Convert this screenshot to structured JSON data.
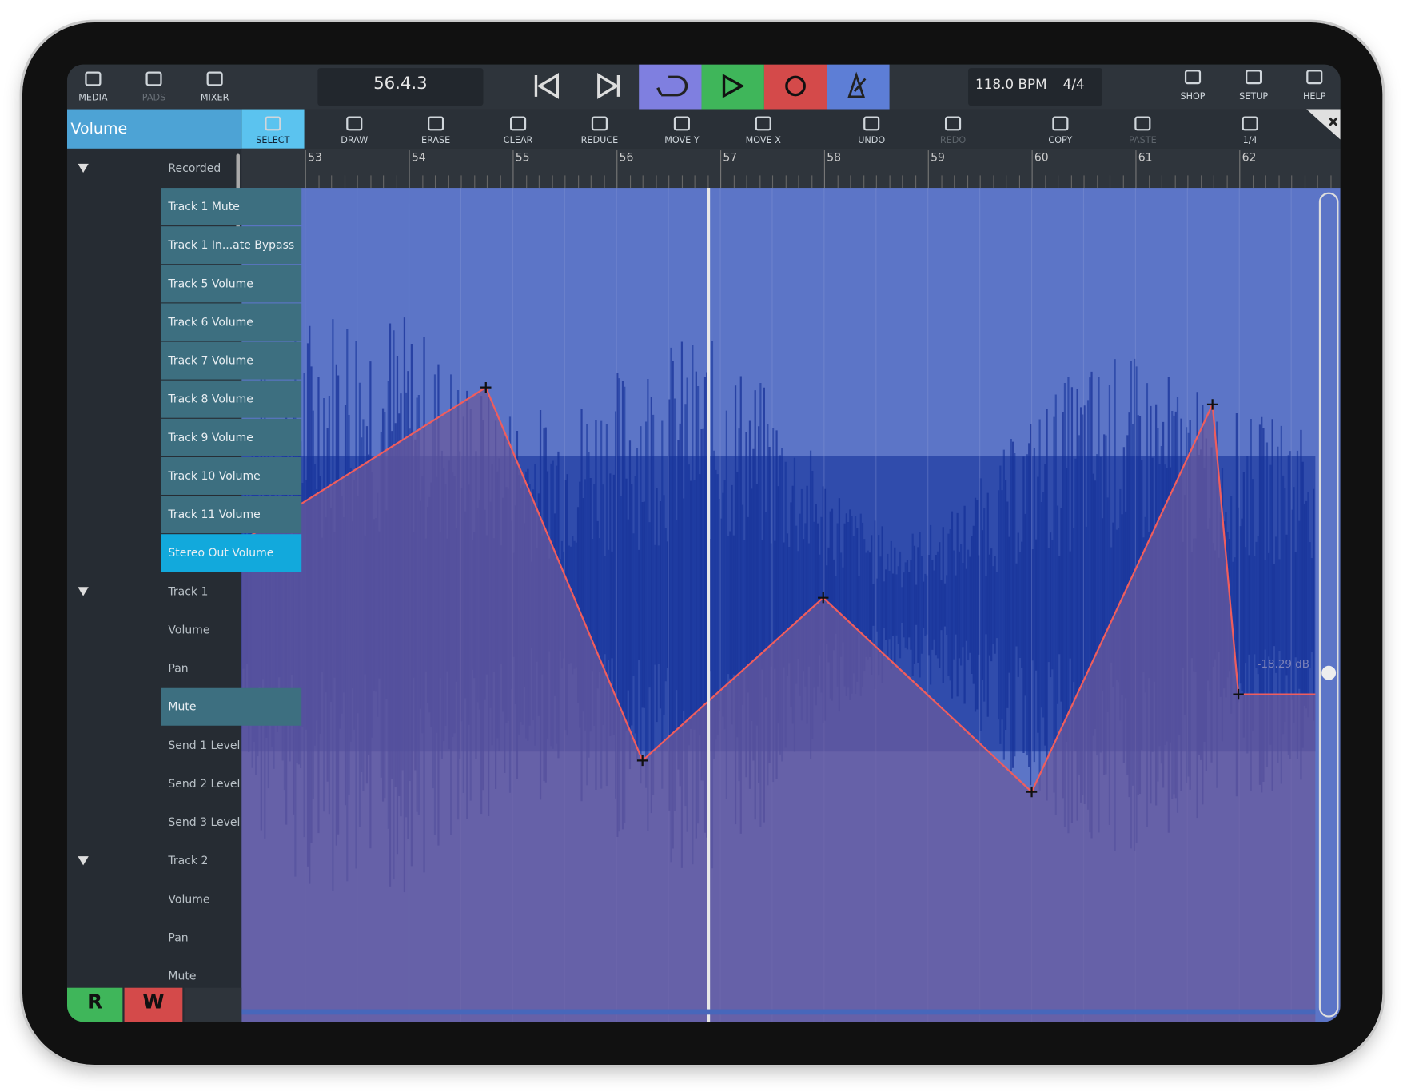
{
  "toolbar": {
    "left": [
      "MEDIA",
      "PADS",
      "MIXER"
    ],
    "position": "56.4.3",
    "bpm": "118.0 BPM",
    "meter": "4/4",
    "right": [
      "SHOP",
      "SETUP",
      "HELP"
    ]
  },
  "lane": {
    "title": "Volume",
    "readout": "-18.29 dB"
  },
  "tools": [
    "SELECT",
    "DRAW",
    "ERASE",
    "CLEAR",
    "REDUCE",
    "MOVE Y",
    "MOVE X",
    "UNDO",
    "REDO",
    "COPY",
    "PASTE",
    "1/4"
  ],
  "ruler": [
    53,
    54,
    55,
    56,
    57,
    58,
    59,
    60,
    61,
    62
  ],
  "sidebar": [
    "Recorded",
    "Track 1 Mute",
    "Track 1 In...ate Bypass",
    "Track 5 Volume",
    "Track 6 Volume",
    "Track 7 Volume",
    "Track 8 Volume",
    "Track 9 Volume",
    "Track 10 Volume",
    "Track 11 Volume",
    "Stereo Out Volume",
    "Track 1",
    "Volume",
    "Pan",
    "Mute",
    "Send 1 Level",
    "Send 2 Level",
    "Send 3 Level",
    "Track 2",
    "Volume",
    "Pan",
    "Mute"
  ],
  "footer": {
    "read": "R",
    "write": "W"
  }
}
